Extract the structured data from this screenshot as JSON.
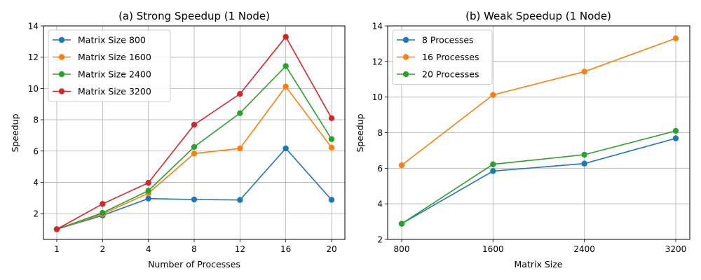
{
  "colors": {
    "blue": "#1f77b4",
    "orange": "#ff7f0e",
    "green": "#2ca02c",
    "red": "#d62728",
    "grid": "#b0b0b0"
  },
  "chart_data": [
    {
      "type": "line",
      "title": "(a) Strong Speedup (1 Node)",
      "xlabel": "Number of Processes",
      "ylabel": "Speedup",
      "categories": [
        "1",
        "2",
        "4",
        "8",
        "12",
        "16",
        "20"
      ],
      "ylim": [
        0.35,
        14
      ],
      "yticks": [
        2,
        4,
        6,
        8,
        10,
        12,
        14
      ],
      "grid": true,
      "legend": "top-left",
      "series": [
        {
          "name": "Matrix Size 800",
          "color": "#1f77b4",
          "values": [
            1.0,
            1.88,
            2.96,
            2.9,
            2.87,
            6.17,
            2.88
          ]
        },
        {
          "name": "Matrix Size 1600",
          "color": "#ff7f0e",
          "values": [
            1.0,
            1.97,
            3.3,
            5.84,
            6.17,
            10.12,
            6.22
          ]
        },
        {
          "name": "Matrix Size 2400",
          "color": "#2ca02c",
          "values": [
            1.0,
            2.05,
            3.46,
            6.26,
            8.42,
            11.43,
            6.76
          ]
        },
        {
          "name": "Matrix Size 3200",
          "color": "#d62728",
          "values": [
            1.0,
            2.62,
            3.97,
            7.68,
            9.65,
            13.3,
            8.1
          ]
        }
      ]
    },
    {
      "type": "line",
      "title": "(b) Weak Speedup (1 Node)",
      "xlabel": "Matrix Size",
      "ylabel": "Speedup",
      "categories": [
        "800",
        "1600",
        "2400",
        "3200"
      ],
      "ylim": [
        2,
        14
      ],
      "yticks": [
        2,
        4,
        6,
        8,
        10,
        12,
        14
      ],
      "grid": true,
      "legend": "top-left",
      "series": [
        {
          "name": "8 Processes",
          "color": "#1f77b4",
          "values": [
            2.88,
            5.84,
            6.26,
            7.68
          ]
        },
        {
          "name": "16 Processes",
          "color": "#ff7f0e",
          "values": [
            6.17,
            10.12,
            11.43,
            13.3
          ]
        },
        {
          "name": "20 Processes",
          "color": "#2ca02c",
          "values": [
            2.88,
            6.22,
            6.76,
            8.1
          ]
        }
      ]
    }
  ]
}
